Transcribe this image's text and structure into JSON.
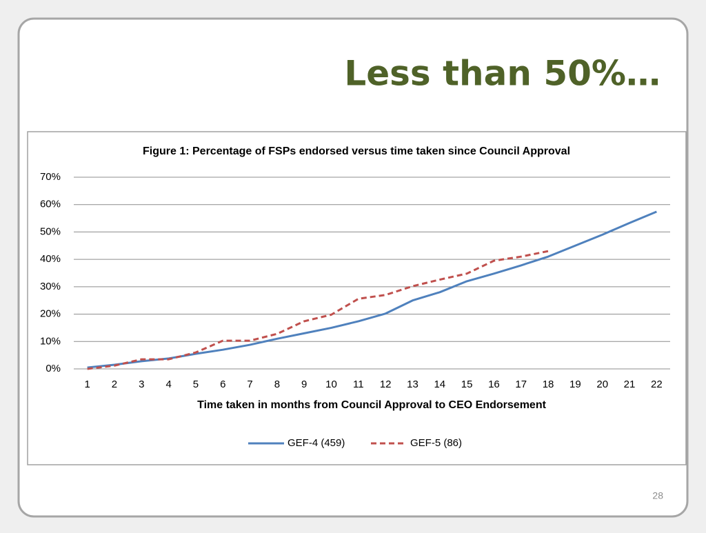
{
  "slide": {
    "title": "Less than 50%…",
    "page_number": "28"
  },
  "chart_data": {
    "type": "line",
    "title": "Figure 1: Percentage of FSPs endorsed versus time taken since Council Approval",
    "x_label": "Time taken in months from Council Approval to CEO Endorsement",
    "categories": [
      "1",
      "2",
      "3",
      "4",
      "5",
      "6",
      "7",
      "8",
      "9",
      "10",
      "11",
      "12",
      "13",
      "14",
      "15",
      "16",
      "17",
      "18",
      "19",
      "20",
      "21",
      "22"
    ],
    "series": [
      {
        "name": "GEF-4 (459)",
        "color": "#4f81bd",
        "dash": false,
        "values": [
          0.5,
          1.5,
          2.8,
          3.8,
          5.5,
          7,
          8.8,
          11,
          13,
          15,
          17.4,
          20.2,
          25,
          28,
          32,
          34.8,
          37.8,
          41,
          45,
          49,
          53.3,
          57.4
        ]
      },
      {
        "name": "GEF-5 (86)",
        "color": "#c0504d",
        "dash": true,
        "values": [
          0,
          1.2,
          3.5,
          3.5,
          6,
          10.3,
          10.3,
          12.8,
          17.4,
          19.8,
          25.6,
          27,
          30.2,
          32.6,
          34.8,
          39.5,
          41,
          43,
          null,
          null,
          null,
          null
        ]
      }
    ],
    "ylim": [
      0,
      70
    ],
    "yticks": [
      {
        "value": 0,
        "label": "0%"
      },
      {
        "value": 10,
        "label": "10%"
      },
      {
        "value": 20,
        "label": "20%"
      },
      {
        "value": 30,
        "label": "30%"
      },
      {
        "value": 40,
        "label": "40%"
      },
      {
        "value": 50,
        "label": "50%"
      },
      {
        "value": 60,
        "label": "60%"
      },
      {
        "value": 70,
        "label": "70%"
      }
    ],
    "grid": true,
    "legend": "bottom"
  }
}
